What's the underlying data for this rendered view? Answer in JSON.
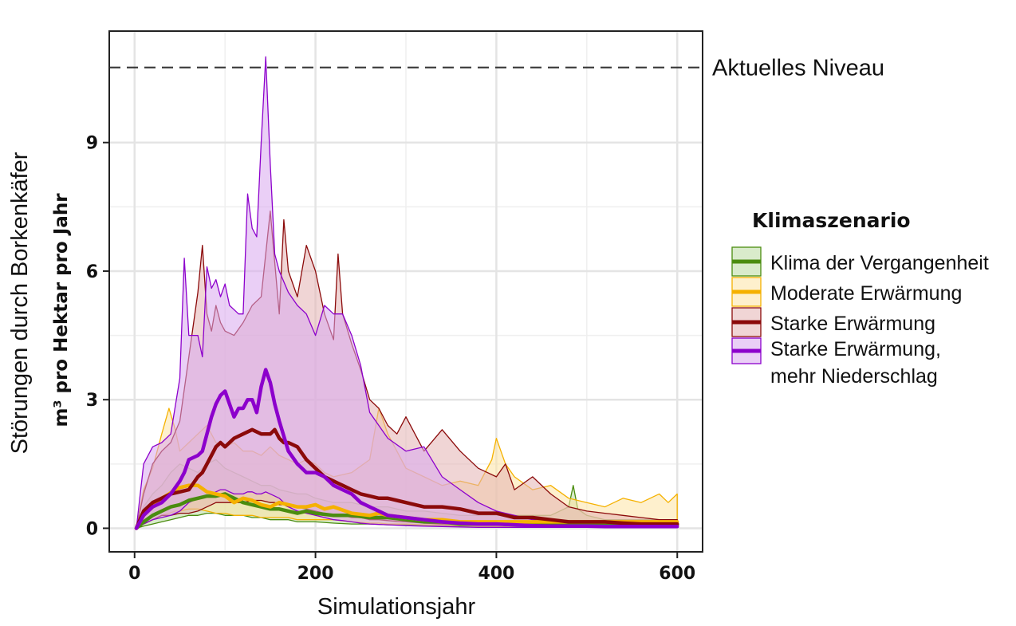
{
  "chart_data": {
    "type": "area",
    "xlabel": "Simulationsjahr",
    "ylabel": "Störungen durch Borkenkäfer",
    "ylabel_sub": "m³ pro Hektar pro Jahr",
    "xlim": [
      -28,
      628
    ],
    "ylim": [
      -0.55,
      11.6
    ],
    "x_ticks": [
      0,
      200,
      400,
      600
    ],
    "y_ticks": [
      0,
      3,
      6,
      9
    ],
    "x_grid": [
      100,
      300,
      500
    ],
    "y_grid": [
      1.5,
      4.5,
      7.5
    ],
    "grid": true,
    "legend_placement": "right",
    "reference_line": {
      "y": 10.75,
      "label": "Aktuelles Niveau",
      "style": "dashed"
    },
    "legend": {
      "title": "Klimaszenario",
      "entries": [
        {
          "label": "Klima der Vergangenheit"
        },
        {
          "label": "Moderate Erwärmung"
        },
        {
          "label": "Starke Erwärmung"
        },
        {
          "label": "Starke Erwärmung,",
          "label_line2": "mehr Niederschlag"
        }
      ]
    },
    "series": [
      {
        "color": "#4a8c0f",
        "fill": "#b9dba0",
        "x": [
          2,
          10,
          20,
          30,
          40,
          50,
          60,
          70,
          80,
          90,
          100,
          110,
          120,
          130,
          140,
          150,
          160,
          170,
          180,
          190,
          200,
          220,
          240,
          260,
          280,
          300,
          320,
          340,
          360,
          380,
          400,
          420,
          440,
          460,
          480,
          485,
          490,
          500,
          520,
          540,
          560,
          580,
          600
        ],
        "mean": [
          0,
          0.15,
          0.3,
          0.4,
          0.5,
          0.55,
          0.65,
          0.7,
          0.75,
          0.75,
          0.8,
          0.7,
          0.6,
          0.55,
          0.5,
          0.45,
          0.45,
          0.4,
          0.35,
          0.4,
          0.35,
          0.3,
          0.3,
          0.25,
          0.25,
          0.2,
          0.15,
          0.15,
          0.1,
          0.1,
          0.1,
          0.1,
          0.1,
          0.1,
          0.1,
          0.1,
          0.1,
          0.1,
          0.08,
          0.08,
          0.08,
          0.08,
          0.08
        ],
        "upper": [
          0,
          0.5,
          0.8,
          1.0,
          1.3,
          1.5,
          1.4,
          1.3,
          1.5,
          1.6,
          1.4,
          1.3,
          1.2,
          1.1,
          1.0,
          1.0,
          0.9,
          0.85,
          0.8,
          0.8,
          0.7,
          0.6,
          0.6,
          0.5,
          0.5,
          0.4,
          0.4,
          0.35,
          0.3,
          0.3,
          0.3,
          0.3,
          0.3,
          0.3,
          0.5,
          1.0,
          0.45,
          0.3,
          0.2,
          0.2,
          0.2,
          0.2,
          0.2
        ],
        "lower": [
          0,
          0.05,
          0.1,
          0.15,
          0.2,
          0.25,
          0.3,
          0.3,
          0.35,
          0.35,
          0.3,
          0.3,
          0.3,
          0.25,
          0.25,
          0.2,
          0.2,
          0.2,
          0.15,
          0.15,
          0.15,
          0.12,
          0.1,
          0.1,
          0.08,
          0.08,
          0.06,
          0.05,
          0.05,
          0.04,
          0.04,
          0.03,
          0.03,
          0.03,
          0.03,
          0.03,
          0.03,
          0.03,
          0.02,
          0.02,
          0.02,
          0.02,
          0.02
        ]
      },
      {
        "color": "#f5b100",
        "fill": "#fde3a4",
        "x": [
          2,
          10,
          20,
          30,
          38,
          45,
          50,
          60,
          70,
          80,
          90,
          100,
          110,
          120,
          130,
          140,
          150,
          160,
          170,
          180,
          190,
          200,
          210,
          220,
          240,
          260,
          270,
          280,
          300,
          320,
          340,
          360,
          380,
          395,
          400,
          410,
          420,
          440,
          460,
          480,
          500,
          520,
          540,
          560,
          580,
          590,
          600
        ],
        "mean": [
          0,
          0.3,
          0.5,
          0.7,
          0.8,
          0.9,
          0.95,
          1.0,
          1.0,
          0.85,
          0.8,
          0.75,
          0.6,
          0.7,
          0.65,
          0.55,
          0.5,
          0.6,
          0.55,
          0.5,
          0.5,
          0.55,
          0.45,
          0.5,
          0.35,
          0.3,
          0.35,
          0.3,
          0.25,
          0.2,
          0.2,
          0.15,
          0.15,
          0.15,
          0.15,
          0.15,
          0.15,
          0.15,
          0.15,
          0.15,
          0.15,
          0.15,
          0.15,
          0.15,
          0.15,
          0.15,
          0.15
        ],
        "upper": [
          0,
          0.9,
          1.4,
          2.2,
          2.8,
          2.3,
          1.8,
          2.0,
          2.2,
          2.4,
          2.0,
          1.9,
          2.0,
          1.8,
          1.8,
          1.7,
          1.9,
          1.7,
          1.6,
          1.5,
          1.6,
          1.5,
          1.3,
          1.2,
          1.3,
          1.6,
          2.8,
          2.2,
          1.4,
          1.2,
          1.0,
          1.1,
          1.0,
          1.6,
          2.1,
          1.5,
          1.2,
          0.9,
          1.0,
          0.7,
          0.6,
          0.5,
          0.7,
          0.6,
          0.8,
          0.6,
          0.8
        ],
        "lower": [
          0,
          0.1,
          0.2,
          0.3,
          0.35,
          0.4,
          0.4,
          0.45,
          0.45,
          0.4,
          0.35,
          0.35,
          0.3,
          0.3,
          0.3,
          0.25,
          0.25,
          0.25,
          0.25,
          0.2,
          0.2,
          0.2,
          0.2,
          0.2,
          0.15,
          0.12,
          0.12,
          0.1,
          0.1,
          0.08,
          0.08,
          0.06,
          0.05,
          0.05,
          0.05,
          0.05,
          0.05,
          0.05,
          0.05,
          0.05,
          0.05,
          0.05,
          0.05,
          0.05,
          0.05,
          0.05,
          0.05
        ]
      },
      {
        "color": "#8b0a0a",
        "fill": "#e3b3b3",
        "x": [
          2,
          10,
          20,
          30,
          40,
          50,
          60,
          70,
          75,
          80,
          85,
          90,
          95,
          100,
          110,
          120,
          130,
          140,
          150,
          155,
          160,
          165,
          170,
          180,
          190,
          200,
          210,
          220,
          225,
          230,
          240,
          250,
          260,
          270,
          280,
          290,
          300,
          320,
          340,
          360,
          380,
          400,
          410,
          420,
          440,
          460,
          480,
          500,
          520,
          540,
          560,
          580,
          600
        ],
        "mean": [
          0,
          0.4,
          0.6,
          0.7,
          0.8,
          0.85,
          0.9,
          1.2,
          1.3,
          1.5,
          1.7,
          1.9,
          2.0,
          1.9,
          2.1,
          2.2,
          2.3,
          2.2,
          2.2,
          2.3,
          2.1,
          2.0,
          2.0,
          1.9,
          1.6,
          1.4,
          1.2,
          1.1,
          1.05,
          1.0,
          0.9,
          0.8,
          0.75,
          0.7,
          0.7,
          0.65,
          0.6,
          0.5,
          0.5,
          0.45,
          0.35,
          0.35,
          0.3,
          0.25,
          0.25,
          0.2,
          0.15,
          0.15,
          0.15,
          0.12,
          0.1,
          0.1,
          0.1
        ],
        "upper": [
          0,
          0.8,
          1.5,
          1.8,
          2.0,
          2.5,
          4.0,
          5.5,
          6.6,
          5.0,
          4.6,
          5.2,
          4.8,
          4.6,
          4.5,
          4.8,
          5.2,
          5.4,
          7.4,
          6.2,
          5.0,
          7.2,
          6.0,
          5.4,
          6.6,
          6.0,
          5.0,
          4.4,
          6.4,
          5.0,
          4.3,
          3.7,
          3.0,
          2.8,
          2.4,
          2.2,
          2.6,
          1.8,
          2.3,
          1.8,
          1.4,
          1.2,
          1.5,
          0.9,
          1.2,
          0.8,
          0.5,
          0.4,
          0.35,
          0.3,
          0.25,
          0.2,
          0.2
        ],
        "lower": [
          0,
          0.1,
          0.2,
          0.3,
          0.3,
          0.35,
          0.35,
          0.4,
          0.45,
          0.5,
          0.55,
          0.6,
          0.6,
          0.6,
          0.6,
          0.6,
          0.65,
          0.65,
          0.6,
          0.6,
          0.55,
          0.55,
          0.5,
          0.5,
          0.45,
          0.4,
          0.35,
          0.3,
          0.3,
          0.3,
          0.25,
          0.25,
          0.2,
          0.2,
          0.18,
          0.16,
          0.15,
          0.12,
          0.1,
          0.1,
          0.08,
          0.08,
          0.06,
          0.06,
          0.05,
          0.05,
          0.04,
          0.04,
          0.03,
          0.03,
          0.03,
          0.03,
          0.03
        ]
      },
      {
        "color": "#8c00cc",
        "fill": "#d9a8ef",
        "x": [
          2,
          10,
          20,
          30,
          40,
          50,
          55,
          60,
          70,
          75,
          80,
          85,
          90,
          95,
          100,
          105,
          110,
          115,
          120,
          125,
          130,
          135,
          140,
          145,
          150,
          155,
          160,
          170,
          180,
          190,
          200,
          210,
          220,
          230,
          240,
          250,
          260,
          280,
          300,
          320,
          340,
          360,
          380,
          400,
          420,
          440,
          460,
          480,
          500,
          520,
          540,
          560,
          580,
          600
        ],
        "mean": [
          0,
          0.3,
          0.5,
          0.6,
          0.8,
          1.1,
          1.3,
          1.6,
          1.7,
          1.8,
          2.2,
          2.6,
          2.9,
          3.1,
          3.2,
          2.9,
          2.6,
          2.8,
          2.8,
          3.0,
          3.0,
          2.7,
          3.3,
          3.7,
          3.4,
          2.9,
          2.5,
          1.8,
          1.5,
          1.3,
          1.3,
          1.2,
          1.0,
          0.9,
          0.8,
          0.6,
          0.5,
          0.3,
          0.25,
          0.2,
          0.15,
          0.12,
          0.1,
          0.1,
          0.08,
          0.06,
          0.05,
          0.05,
          0.05,
          0.04,
          0.04,
          0.04,
          0.04,
          0.04
        ],
        "upper": [
          0,
          1.5,
          1.9,
          2.0,
          2.2,
          3.5,
          6.3,
          4.5,
          4.5,
          4.0,
          6.1,
          5.6,
          5.8,
          5.4,
          5.7,
          5.2,
          5.1,
          5.0,
          5.0,
          7.8,
          7.0,
          6.8,
          9.0,
          11.0,
          8.5,
          6.4,
          6.0,
          5.5,
          5.2,
          5.0,
          4.5,
          5.2,
          5.0,
          5.0,
          4.5,
          3.8,
          2.7,
          2.1,
          1.8,
          1.9,
          1.2,
          0.9,
          0.6,
          0.4,
          0.3,
          0.2,
          0.15,
          0.12,
          0.1,
          0.1,
          0.1,
          0.1,
          0.1,
          0.1
        ],
        "lower": [
          0,
          0.1,
          0.2,
          0.25,
          0.3,
          0.4,
          0.5,
          0.6,
          0.7,
          0.7,
          0.75,
          0.8,
          0.85,
          0.9,
          0.9,
          0.85,
          0.8,
          0.8,
          0.8,
          0.85,
          0.85,
          0.8,
          0.8,
          0.85,
          0.8,
          0.75,
          0.7,
          0.5,
          0.4,
          0.35,
          0.3,
          0.25,
          0.2,
          0.18,
          0.15,
          0.12,
          0.1,
          0.08,
          0.06,
          0.05,
          0.04,
          0.03,
          0.02,
          0.02,
          0.02,
          0.02,
          0.02,
          0.02,
          0.02,
          0.02,
          0.02,
          0.02,
          0.02,
          0.02
        ]
      }
    ]
  }
}
